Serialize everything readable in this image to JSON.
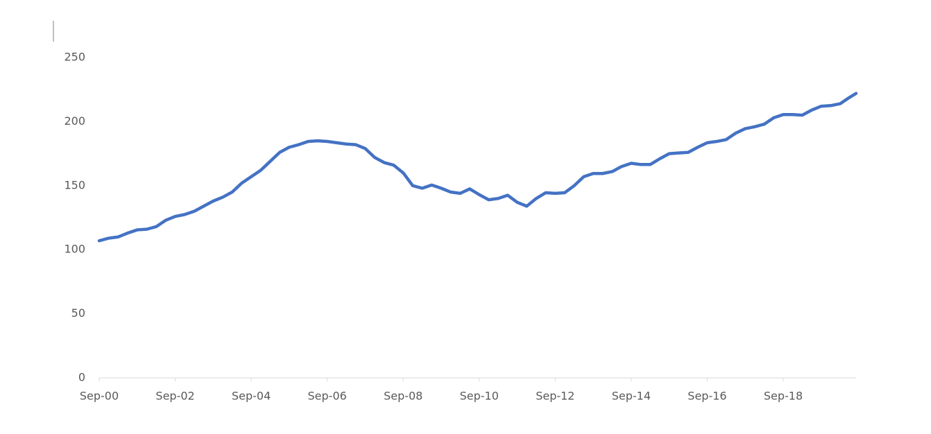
{
  "chart_data": {
    "type": "line",
    "x": [
      "2000-09",
      "2000-12",
      "2001-03",
      "2001-06",
      "2001-09",
      "2001-12",
      "2002-03",
      "2002-06",
      "2002-09",
      "2002-12",
      "2003-03",
      "2003-06",
      "2003-09",
      "2003-12",
      "2004-03",
      "2004-06",
      "2004-09",
      "2004-12",
      "2005-03",
      "2005-06",
      "2005-09",
      "2005-12",
      "2006-03",
      "2006-06",
      "2006-09",
      "2006-12",
      "2007-03",
      "2007-06",
      "2007-09",
      "2007-12",
      "2008-03",
      "2008-06",
      "2008-09",
      "2008-12",
      "2009-03",
      "2009-06",
      "2009-09",
      "2009-12",
      "2010-03",
      "2010-06",
      "2010-09",
      "2010-12",
      "2011-03",
      "2011-06",
      "2011-09",
      "2011-12",
      "2012-03",
      "2012-06",
      "2012-09",
      "2012-12",
      "2013-03",
      "2013-06",
      "2013-09",
      "2013-12",
      "2014-03",
      "2014-06",
      "2014-09",
      "2014-12",
      "2015-03",
      "2015-06",
      "2015-09",
      "2015-12",
      "2016-03",
      "2016-06",
      "2016-09",
      "2016-12",
      "2017-03",
      "2017-06",
      "2017-09",
      "2017-12",
      "2018-03",
      "2018-06",
      "2018-09",
      "2018-12",
      "2019-03",
      "2019-06",
      "2019-09",
      "2019-12",
      "2020-03",
      "2020-06",
      "2020-08"
    ],
    "values": [
      107,
      109,
      110,
      113,
      115.5,
      116,
      118,
      123,
      126,
      127.5,
      130,
      134,
      138,
      141,
      145,
      152,
      157,
      162,
      169,
      176,
      180,
      182,
      184.5,
      185,
      184.5,
      183.5,
      182.5,
      182,
      179,
      172,
      168,
      166,
      160,
      150,
      148,
      150.5,
      148,
      145,
      144,
      147.5,
      143,
      139,
      140,
      142.5,
      137,
      134,
      140,
      144.5,
      144,
      144.5,
      150,
      157,
      159.5,
      159.5,
      161,
      165,
      167.5,
      166.5,
      166.5,
      171,
      175,
      175.5,
      176,
      180,
      183.5,
      184.5,
      186,
      191,
      194.5,
      196,
      198,
      203,
      205.5,
      205.5,
      205,
      209,
      212,
      212.5,
      214,
      219,
      222
    ],
    "color": "#4472c4",
    "xlim": [
      "2000-09",
      "2020-08"
    ],
    "xticks": [
      {
        "value": "2000-09",
        "label": "Sep-00"
      },
      {
        "value": "2002-09",
        "label": "Sep-02"
      },
      {
        "value": "2004-09",
        "label": "Sep-04"
      },
      {
        "value": "2006-09",
        "label": "Sep-06"
      },
      {
        "value": "2008-09",
        "label": "Sep-08"
      },
      {
        "value": "2010-09",
        "label": "Sep-10"
      },
      {
        "value": "2012-09",
        "label": "Sep-12"
      },
      {
        "value": "2014-09",
        "label": "Sep-14"
      },
      {
        "value": "2016-09",
        "label": "Sep-16"
      },
      {
        "value": "2018-09",
        "label": "Sep-18"
      }
    ],
    "ylim": [
      0,
      250
    ],
    "yticks": [
      0,
      50,
      100,
      150,
      200,
      250
    ],
    "grid": false
  }
}
